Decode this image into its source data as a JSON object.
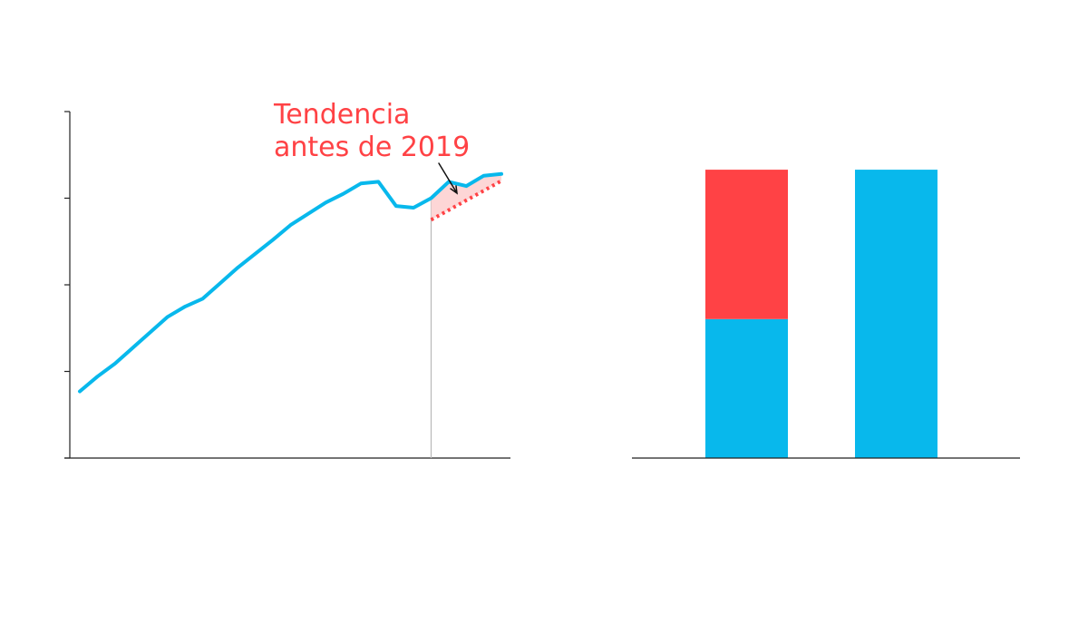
{
  "colors": {
    "actual": "#08b8ec",
    "trend": "#ff4245",
    "gap_fill": "#fdd6d6",
    "axis": "#222222",
    "marker_line": "#b8b8b8",
    "annotation_arrow": "#111111"
  },
  "chart_data": [
    {
      "type": "line",
      "title": "",
      "xlabel": "",
      "ylabel": "",
      "x_tick_labels": [],
      "y_tick_labels": [],
      "ylim": [
        0,
        4
      ],
      "y_ticks": [
        0,
        1,
        2,
        3,
        4
      ],
      "grid": false,
      "series": [
        {
          "role": "actual",
          "x": [
            0,
            1,
            2,
            3,
            4,
            5,
            6,
            7,
            8,
            9,
            10,
            11,
            12,
            13,
            14,
            15,
            16,
            17,
            18,
            19,
            20,
            21,
            22,
            23,
            24
          ],
          "y": [
            0.77,
            0.94,
            1.09,
            1.27,
            1.45,
            1.63,
            1.75,
            1.84,
            2.02,
            2.2,
            2.36,
            2.52,
            2.69,
            2.82,
            2.95,
            3.05,
            3.17,
            3.19,
            2.91,
            2.89,
            3.0,
            3.19,
            3.14,
            3.26,
            3.28
          ]
        }
      ],
      "trend_series": {
        "role": "trend",
        "x": [
          20,
          24
        ],
        "y": [
          2.75,
          3.2
        ]
      },
      "annotation": {
        "line1": "Tendencia",
        "line2": "antes de 2019"
      }
    },
    {
      "type": "bar",
      "title": "",
      "xlabel": "",
      "ylabel": "",
      "categories": [],
      "ylim": [
        0,
        3.3
      ],
      "stacks": [
        {
          "segments": [
            {
              "role": "actual",
              "value": 1.6
            },
            {
              "role": "trend",
              "value": 1.72
            }
          ]
        },
        {
          "segments": [
            {
              "role": "actual",
              "value": 3.32
            }
          ]
        }
      ]
    }
  ]
}
